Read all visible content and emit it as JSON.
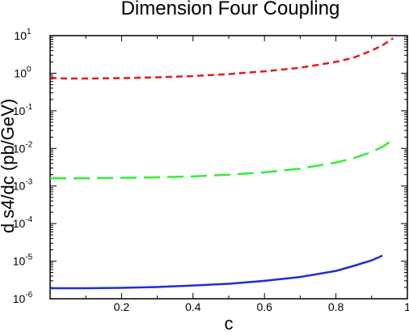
{
  "chart_data": {
    "type": "line",
    "title": "Dimension Four Coupling",
    "xlabel": "c",
    "ylabel": "d s4/dc (pb/GeV)",
    "xlim": [
      0,
      1
    ],
    "ylim": [
      1e-06,
      10
    ],
    "y_scale": "log",
    "grid": false,
    "legend": "none",
    "x_ticks": [
      {
        "value": 0.2,
        "label": "0.2"
      },
      {
        "value": 0.4,
        "label": "0.4"
      },
      {
        "value": 0.6,
        "label": "0.6"
      },
      {
        "value": 0.8,
        "label": "0.8"
      },
      {
        "value": 1.0,
        "label": "1"
      }
    ],
    "y_ticks": [
      {
        "exp": 1,
        "base": "10",
        "power": "1"
      },
      {
        "exp": 0,
        "base": "10",
        "power": "0"
      },
      {
        "exp": -1,
        "base": "10",
        "power": "-1"
      },
      {
        "exp": -2,
        "base": "10",
        "power": "-2"
      },
      {
        "exp": -3,
        "base": "10",
        "power": "-3"
      },
      {
        "exp": -4,
        "base": "10",
        "power": "-4"
      },
      {
        "exp": -5,
        "base": "10",
        "power": "-5"
      },
      {
        "exp": -6,
        "base": "10",
        "power": "-6"
      }
    ],
    "series": [
      {
        "color": "#e41a1c",
        "dash": "short",
        "x": [
          0.0,
          0.05,
          0.1,
          0.2,
          0.3,
          0.4,
          0.5,
          0.6,
          0.7,
          0.8,
          0.85,
          0.9,
          0.93,
          0.96
        ],
        "y": [
          0.75,
          0.72,
          0.72,
          0.74,
          0.78,
          0.84,
          0.95,
          1.12,
          1.4,
          2.0,
          2.6,
          4.0,
          5.5,
          8.5
        ]
      },
      {
        "color": "#33ee33",
        "dash": "long",
        "x": [
          0.0,
          0.05,
          0.1,
          0.2,
          0.3,
          0.4,
          0.5,
          0.6,
          0.7,
          0.8,
          0.85,
          0.9,
          0.93,
          0.96
        ],
        "y": [
          0.0016,
          0.0016,
          0.0016,
          0.00165,
          0.0017,
          0.0018,
          0.002,
          0.0023,
          0.0029,
          0.0042,
          0.0055,
          0.008,
          0.011,
          0.017
        ]
      },
      {
        "color": "#1f2fd6",
        "dash": "solid",
        "x": [
          0.0,
          0.1,
          0.2,
          0.3,
          0.4,
          0.5,
          0.6,
          0.7,
          0.8,
          0.85,
          0.9,
          0.93
        ],
        "y": [
          1.9e-06,
          1.9e-06,
          1.95e-06,
          2.05e-06,
          2.25e-06,
          2.5e-06,
          3e-06,
          3.8e-06,
          5.5e-06,
          7.5e-06,
          1.05e-05,
          1.4e-05
        ]
      }
    ]
  }
}
